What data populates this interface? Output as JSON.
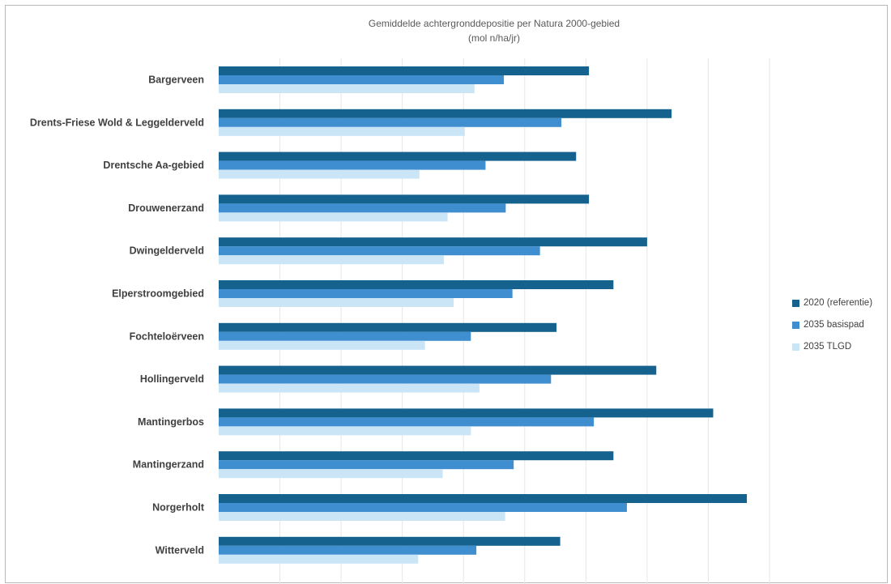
{
  "chart_data": {
    "type": "bar",
    "orientation": "horizontal",
    "title": "Gemiddelde achtergronddepositie per Natura 2000-gebied",
    "subtitle": "(mol n/ha/jr)",
    "xlabel": "",
    "ylabel": "",
    "xlim": [
      0,
      900
    ],
    "grid": true,
    "legend_position": "right",
    "categories": [
      "Bargerveen",
      "Drents-Friese Wold & Leggelderveld",
      "Drentsche Aa-gebied",
      "Drouwenerzand",
      "Dwingelderveld",
      "Elperstroomgebied",
      "Fochteloërveen",
      "Hollingerveld",
      "Mantingerbos",
      "Mantingerzand",
      "Norgerholt",
      "Witterveld"
    ],
    "series": [
      {
        "name": "2020 (referentie)",
        "color": "#15628f",
        "values": [
          605,
          740,
          584,
          605,
          700,
          645,
          552,
          715,
          808,
          645,
          863,
          558
        ]
      },
      {
        "name": "2035 basispad",
        "color": "#3e8ed0",
        "values": [
          466,
          560,
          436,
          469,
          525,
          480,
          412,
          543,
          613,
          482,
          667,
          421
        ]
      },
      {
        "name": "2035 TLGD",
        "color": "#cae5f6",
        "values": [
          418,
          402,
          328,
          374,
          368,
          384,
          337,
          426,
          412,
          366,
          468,
          326
        ]
      }
    ]
  }
}
